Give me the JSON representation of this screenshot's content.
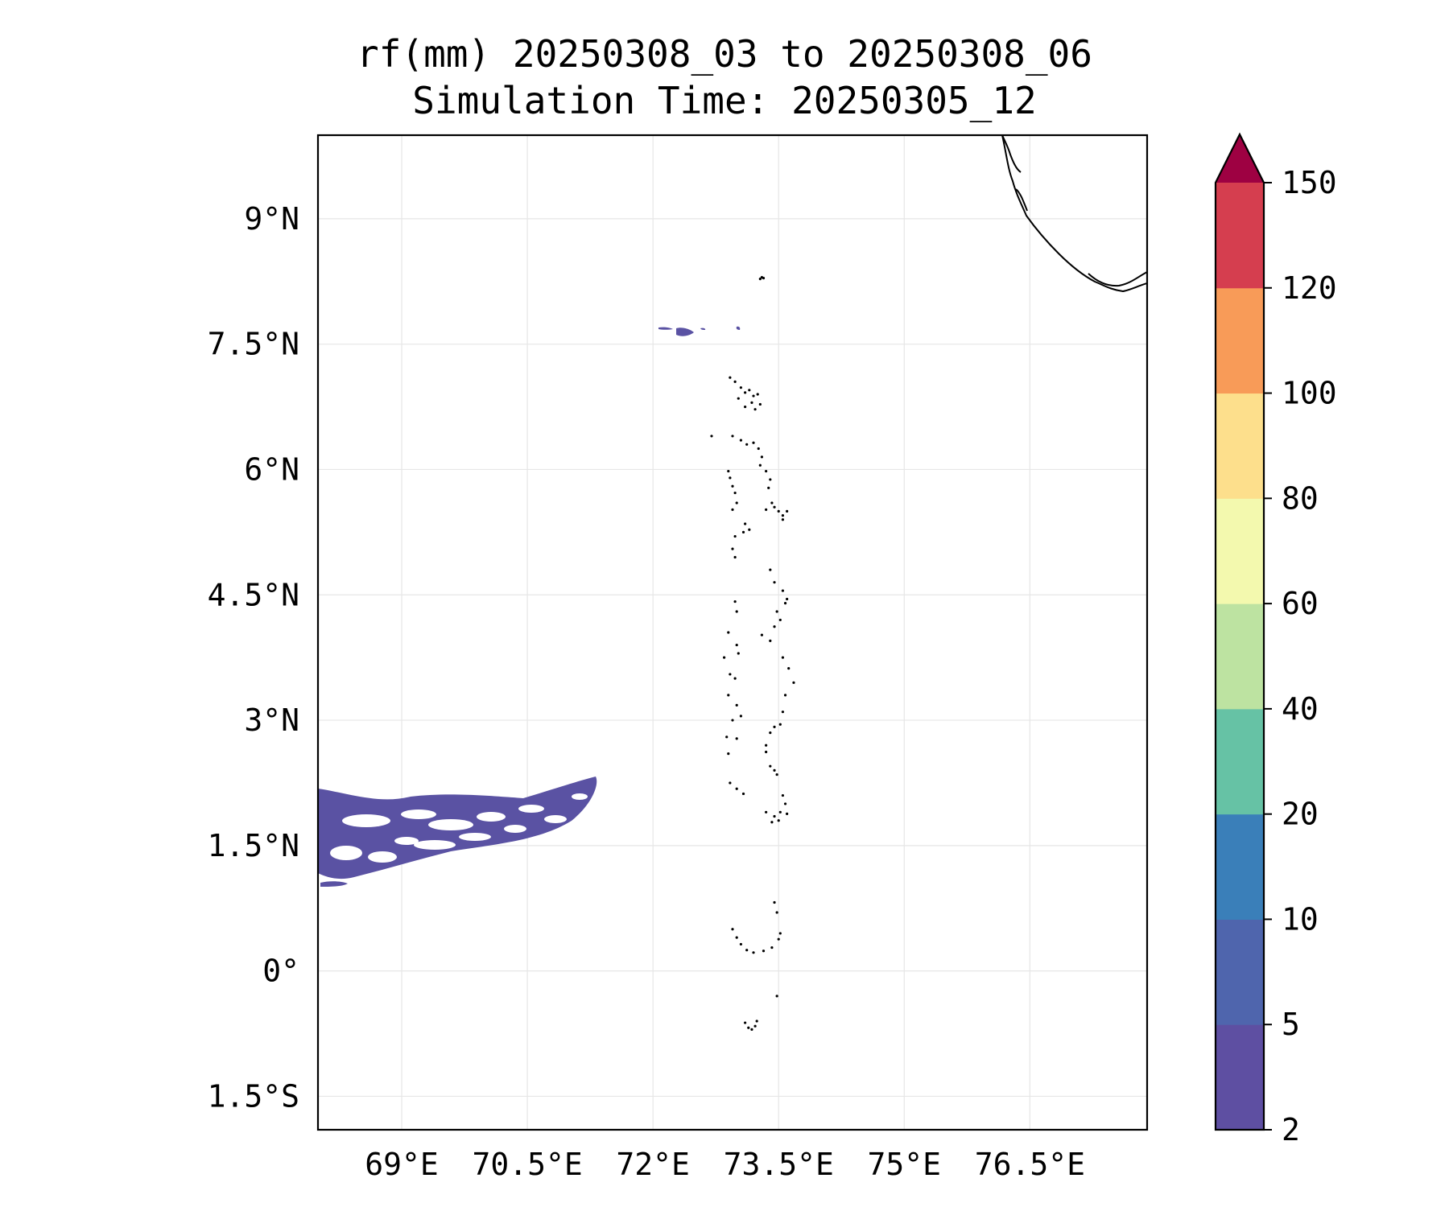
{
  "title": {
    "line1": "rf(mm) 20250308_03 to 20250308_06",
    "line2": "Simulation Time: 20250305_12"
  },
  "map": {
    "lon_range": [
      68.0,
      77.9
    ],
    "lat_range": [
      -1.9,
      10.0
    ],
    "lat_ticks": [
      {
        "value": 9.0,
        "label": "9°N"
      },
      {
        "value": 7.5,
        "label": "7.5°N"
      },
      {
        "value": 6.0,
        "label": "6°N"
      },
      {
        "value": 4.5,
        "label": "4.5°N"
      },
      {
        "value": 3.0,
        "label": "3°N"
      },
      {
        "value": 1.5,
        "label": "1.5°N"
      },
      {
        "value": 0.0,
        "label": "0°"
      },
      {
        "value": -1.5,
        "label": "1.5°S"
      }
    ],
    "lon_ticks": [
      {
        "value": 69.0,
        "label": "69°E"
      },
      {
        "value": 70.5,
        "label": "70.5°E"
      },
      {
        "value": 72.0,
        "label": "72°E"
      },
      {
        "value": 73.5,
        "label": "73.5°E"
      },
      {
        "value": 75.0,
        "label": "75°E"
      },
      {
        "value": 76.5,
        "label": "76.5°E"
      }
    ],
    "gridlines": true,
    "rain_fill_color": "#5a52a3",
    "coast_color": "#000000"
  },
  "colorbar": {
    "levels": [
      "2",
      "5",
      "10",
      "20",
      "40",
      "60",
      "80",
      "100",
      "120",
      "150"
    ],
    "colors": [
      "#5e4fa2",
      "#4f65ad",
      "#3a7fb9",
      "#66c2a5",
      "#bde3a1",
      "#f3f9ae",
      "#fddf8c",
      "#f89b58",
      "#d53e4f"
    ],
    "extend_color": "#9e0142",
    "extend": "max"
  }
}
